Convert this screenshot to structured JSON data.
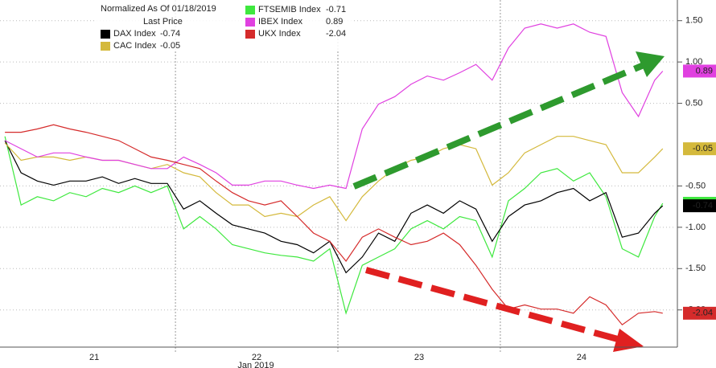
{
  "chart_data": {
    "type": "line",
    "legend_title": "Normalized As Of 01/18/2019",
    "legend_subtitle": "Last Price",
    "x_label": "Jan 2019",
    "x": [
      20.95,
      21.05,
      21.15,
      21.25,
      21.35,
      21.45,
      21.55,
      21.65,
      21.75,
      21.85,
      21.95,
      22.05,
      22.15,
      22.25,
      22.35,
      22.45,
      22.55,
      22.65,
      22.75,
      22.85,
      22.95,
      23.05,
      23.15,
      23.25,
      23.35,
      23.45,
      23.55,
      23.65,
      23.75,
      23.85,
      23.95,
      24.05,
      24.15,
      24.25,
      24.35,
      24.45,
      24.55,
      24.65,
      24.75,
      24.85,
      24.95,
      25.0
    ],
    "xlim": [
      20.92,
      25.08
    ],
    "xticks": [
      {
        "value": 21.5,
        "label": "21"
      },
      {
        "value": 22.5,
        "label": "22"
      },
      {
        "value": 23.5,
        "label": "23"
      },
      {
        "value": 24.5,
        "label": "24"
      }
    ],
    "ylim": [
      -2.45,
      1.75
    ],
    "yticks": [
      {
        "value": 1.5,
        "label": "1.50"
      },
      {
        "value": 1.0,
        "label": "1.00"
      },
      {
        "value": 0.5,
        "label": "0.50"
      },
      {
        "value": -0.5,
        "label": "-0.50"
      },
      {
        "value": -1.0,
        "label": "-1.00"
      },
      {
        "value": -1.5,
        "label": "-1.50"
      },
      {
        "value": -2.0,
        "label": "-2.00"
      }
    ],
    "grid": true,
    "series": [
      {
        "name": "FTSEMIB Index",
        "color": "#3ee83e",
        "values": [
          0.1,
          -0.73,
          -0.63,
          -0.68,
          -0.58,
          -0.63,
          -0.53,
          -0.58,
          -0.5,
          -0.58,
          -0.5,
          -1.02,
          -0.87,
          -1.02,
          -1.21,
          -1.26,
          -1.31,
          -1.34,
          -1.36,
          -1.41,
          -1.26,
          -2.04,
          -1.46,
          -1.36,
          -1.26,
          -1.02,
          -0.92,
          -1.02,
          -0.87,
          -0.92,
          -1.36,
          -0.68,
          -0.53,
          -0.34,
          -0.29,
          -0.44,
          -0.34,
          -0.63,
          -1.26,
          -1.36,
          -0.87,
          -0.71
        ]
      },
      {
        "name": "DAX Index",
        "color": "#000000",
        "values": [
          0.05,
          -0.34,
          -0.44,
          -0.49,
          -0.44,
          -0.44,
          -0.39,
          -0.47,
          -0.41,
          -0.47,
          -0.47,
          -0.78,
          -0.68,
          -0.83,
          -0.97,
          -1.02,
          -1.07,
          -1.17,
          -1.21,
          -1.31,
          -1.17,
          -1.55,
          -1.36,
          -1.07,
          -1.17,
          -0.83,
          -0.73,
          -0.83,
          -0.68,
          -0.78,
          -1.17,
          -0.87,
          -0.73,
          -0.68,
          -0.58,
          -0.53,
          -0.68,
          -0.58,
          -1.12,
          -1.07,
          -0.83,
          -0.74
        ]
      },
      {
        "name": "CAC Index",
        "color": "#d4b93c",
        "values": [
          0.02,
          -0.19,
          -0.15,
          -0.15,
          -0.19,
          -0.15,
          -0.19,
          -0.19,
          -0.24,
          -0.29,
          -0.24,
          -0.34,
          -0.39,
          -0.58,
          -0.73,
          -0.73,
          -0.87,
          -0.83,
          -0.87,
          -0.73,
          -0.63,
          -0.92,
          -0.63,
          -0.44,
          -0.29,
          -0.19,
          -0.15,
          -0.05,
          0,
          -0.05,
          -0.49,
          -0.34,
          -0.1,
          0,
          0.1,
          0.1,
          0.05,
          0,
          -0.34,
          -0.34,
          -0.15,
          -0.05
        ]
      },
      {
        "name": "IBEX Index",
        "color": "#e040e0",
        "values": [
          0.05,
          -0.05,
          -0.15,
          -0.1,
          -0.1,
          -0.15,
          -0.19,
          -0.19,
          -0.24,
          -0.29,
          -0.29,
          -0.15,
          -0.24,
          -0.34,
          -0.49,
          -0.49,
          -0.44,
          -0.44,
          -0.49,
          -0.53,
          -0.49,
          -0.53,
          0.19,
          0.49,
          0.58,
          0.73,
          0.83,
          0.78,
          0.87,
          0.97,
          0.78,
          1.17,
          1.41,
          1.46,
          1.41,
          1.46,
          1.36,
          1.31,
          0.63,
          0.34,
          0.78,
          0.89
        ]
      },
      {
        "name": "UKX Index",
        "color": "#d52b2b",
        "values": [
          0.15,
          0.15,
          0.19,
          0.24,
          0.19,
          0.15,
          0.1,
          0.05,
          -0.05,
          -0.15,
          -0.19,
          -0.24,
          -0.29,
          -0.44,
          -0.58,
          -0.68,
          -0.73,
          -0.68,
          -0.87,
          -1.07,
          -1.17,
          -1.41,
          -1.12,
          -1.02,
          -1.12,
          -1.21,
          -1.17,
          -1.07,
          -1.21,
          -1.46,
          -1.75,
          -1.99,
          -1.94,
          -1.99,
          -1.99,
          -2.04,
          -1.84,
          -1.94,
          -2.18,
          -2.04,
          -2.02,
          -2.04
        ]
      }
    ]
  }
}
